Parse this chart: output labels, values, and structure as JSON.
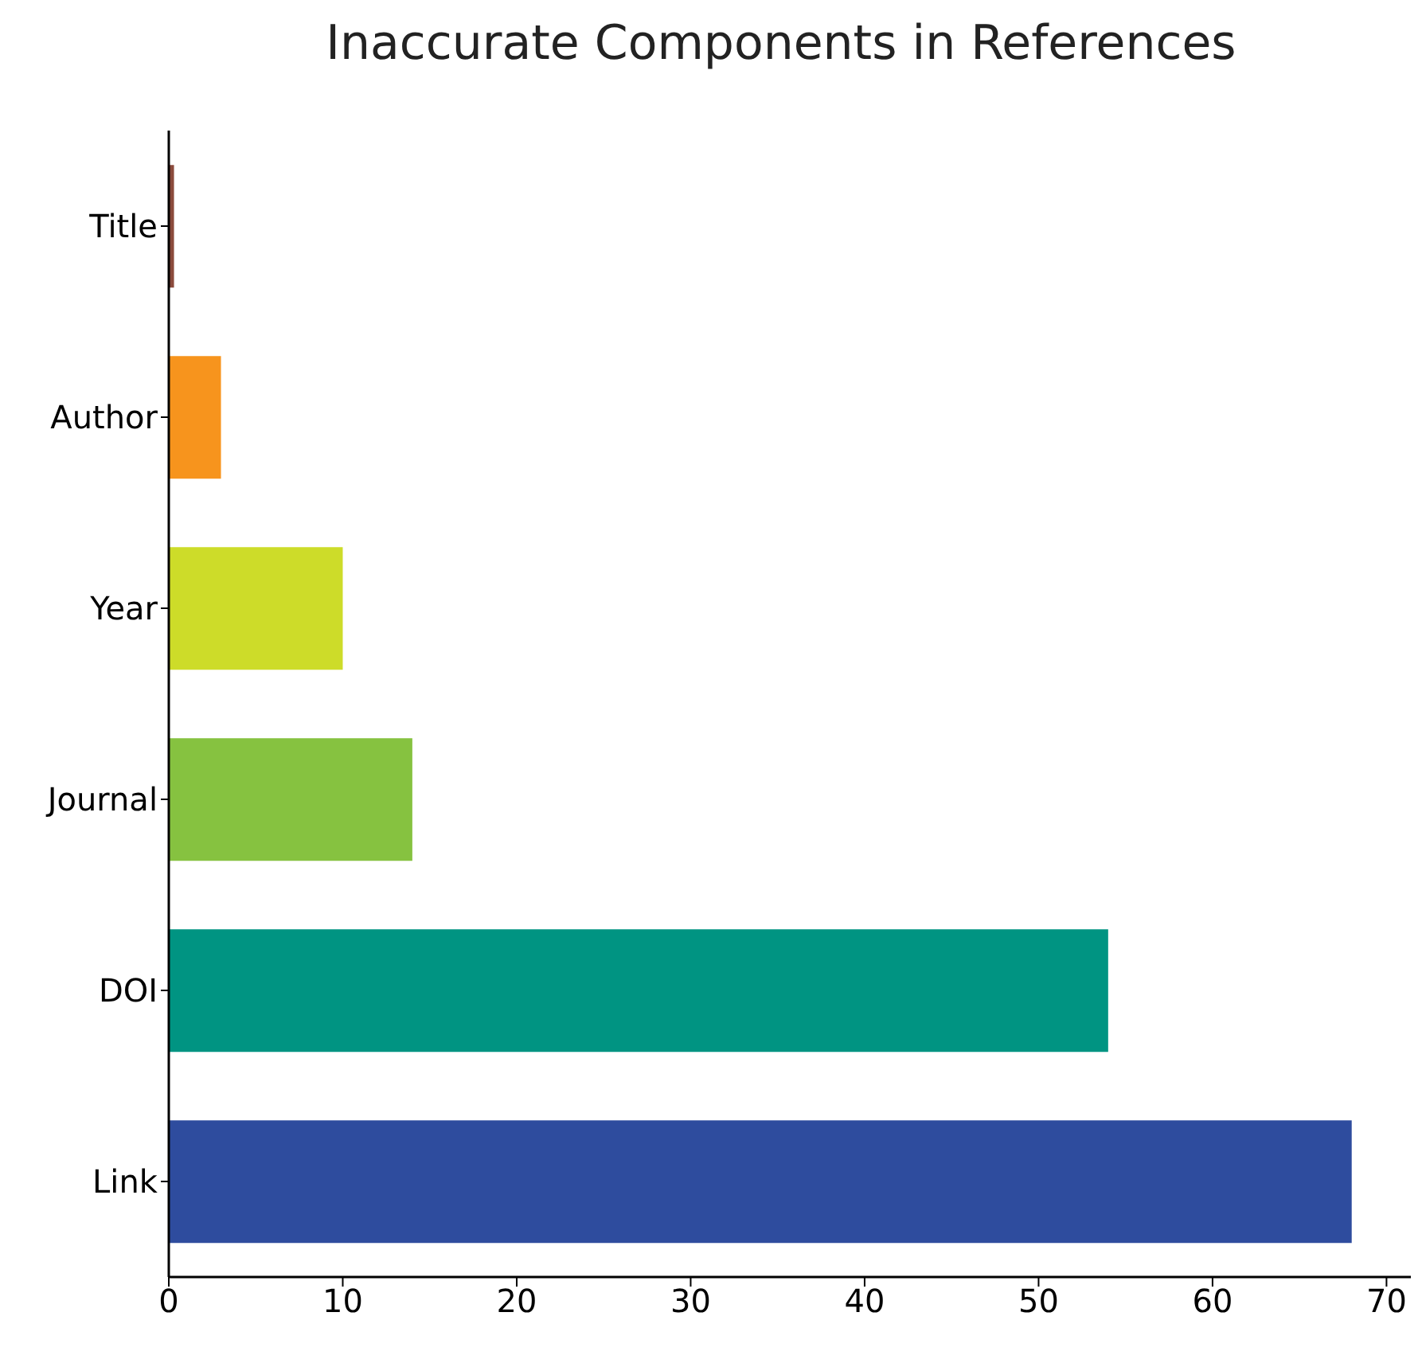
{
  "chart_data": {
    "type": "bar",
    "orientation": "horizontal",
    "title": "Inaccurate Components in References",
    "categories": [
      "Title",
      "Author",
      "Year",
      "Journal",
      "DOI",
      "Link"
    ],
    "values": [
      0.3,
      3,
      10,
      14,
      54,
      68
    ],
    "colors": [
      "#8b4a3c",
      "#f7941d",
      "#cddc29",
      "#86c240",
      "#009482",
      "#2e4c9e"
    ],
    "xlim": [
      0,
      71.4
    ],
    "xticks": [
      0,
      10,
      20,
      30,
      40,
      50,
      60,
      70
    ],
    "grid": false,
    "legend": false
  }
}
